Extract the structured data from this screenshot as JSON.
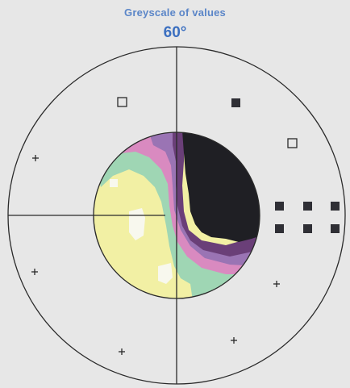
{
  "header": {
    "title": "Greyscale of values",
    "angle_label": "60°"
  },
  "colors": {
    "background": "#e7e7e7",
    "title_color": "#5b86c8",
    "angle_color": "#3b6fc0",
    "axis_color": "#2a2a2a",
    "dark": "#1f1f24",
    "purple": "#6a3f78",
    "violet": "#9a74b4",
    "pink": "#d98ac0",
    "mint": "#9fd6b4",
    "yellow": "#f2f0a4",
    "white": "#f8f8ee"
  },
  "markers": {
    "filled_square": "filled-square",
    "hollow_square": "hollow-square",
    "plus_marker": "plus"
  }
}
